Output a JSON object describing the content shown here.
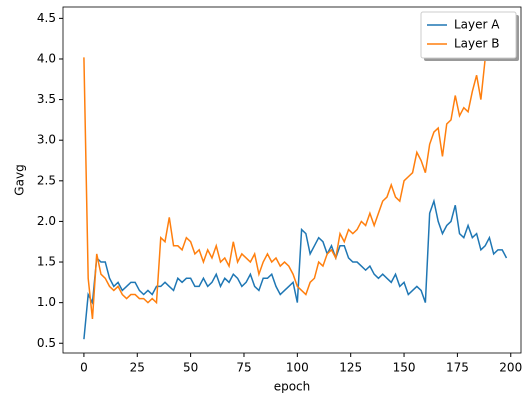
{
  "chart_data": {
    "type": "line",
    "xlabel": "epoch",
    "ylabel": "Gavg",
    "x": [
      0,
      2,
      4,
      6,
      8,
      10,
      12,
      14,
      16,
      18,
      20,
      22,
      24,
      26,
      28,
      30,
      32,
      34,
      36,
      38,
      40,
      42,
      44,
      46,
      48,
      50,
      52,
      54,
      56,
      58,
      60,
      62,
      64,
      66,
      68,
      70,
      72,
      74,
      76,
      78,
      80,
      82,
      84,
      86,
      88,
      90,
      92,
      94,
      96,
      98,
      100,
      102,
      104,
      106,
      108,
      110,
      112,
      114,
      116,
      118,
      120,
      122,
      124,
      126,
      128,
      130,
      132,
      134,
      136,
      138,
      140,
      142,
      144,
      146,
      148,
      150,
      152,
      154,
      156,
      158,
      160,
      162,
      164,
      166,
      168,
      170,
      172,
      174,
      176,
      178,
      180,
      182,
      184,
      186,
      188,
      190,
      192,
      194,
      196,
      198
    ],
    "series": [
      {
        "name": "Layer A",
        "color": "#1f77b4",
        "values": [
          0.55,
          1.1,
          1.0,
          1.55,
          1.5,
          1.5,
          1.3,
          1.2,
          1.25,
          1.15,
          1.2,
          1.25,
          1.25,
          1.15,
          1.1,
          1.15,
          1.1,
          1.2,
          1.2,
          1.25,
          1.2,
          1.15,
          1.3,
          1.25,
          1.3,
          1.3,
          1.2,
          1.2,
          1.3,
          1.2,
          1.25,
          1.35,
          1.2,
          1.3,
          1.25,
          1.35,
          1.3,
          1.2,
          1.25,
          1.35,
          1.2,
          1.15,
          1.3,
          1.3,
          1.35,
          1.2,
          1.1,
          1.15,
          1.2,
          1.25,
          1.0,
          1.9,
          1.85,
          1.6,
          1.7,
          1.8,
          1.75,
          1.6,
          1.7,
          1.55,
          1.7,
          1.7,
          1.55,
          1.5,
          1.5,
          1.45,
          1.4,
          1.45,
          1.35,
          1.3,
          1.35,
          1.3,
          1.25,
          1.35,
          1.2,
          1.25,
          1.1,
          1.15,
          1.2,
          1.15,
          1.0,
          2.1,
          2.25,
          2.0,
          1.85,
          1.95,
          2.0,
          2.2,
          1.85,
          1.8,
          1.95,
          1.8,
          1.85,
          1.65,
          1.7,
          1.8,
          1.6,
          1.65,
          1.65,
          1.55
        ]
      },
      {
        "name": "Layer B",
        "color": "#ff7f0e",
        "values": [
          4.02,
          1.3,
          0.8,
          1.6,
          1.35,
          1.3,
          1.2,
          1.15,
          1.2,
          1.1,
          1.05,
          1.1,
          1.1,
          1.05,
          1.05,
          1.0,
          1.05,
          1.0,
          1.8,
          1.75,
          2.05,
          1.7,
          1.7,
          1.65,
          1.8,
          1.75,
          1.6,
          1.65,
          1.5,
          1.65,
          1.55,
          1.7,
          1.5,
          1.55,
          1.45,
          1.75,
          1.5,
          1.6,
          1.55,
          1.5,
          1.6,
          1.35,
          1.5,
          1.6,
          1.5,
          1.55,
          1.45,
          1.5,
          1.45,
          1.35,
          1.2,
          1.15,
          1.1,
          1.25,
          1.3,
          1.5,
          1.45,
          1.6,
          1.65,
          1.55,
          1.85,
          1.75,
          1.9,
          1.85,
          1.9,
          2.0,
          1.95,
          2.1,
          1.95,
          2.1,
          2.25,
          2.3,
          2.45,
          2.3,
          2.25,
          2.5,
          2.55,
          2.6,
          2.85,
          2.75,
          2.6,
          2.95,
          3.1,
          3.15,
          2.8,
          3.2,
          3.25,
          3.55,
          3.3,
          3.4,
          3.35,
          3.6,
          3.8,
          3.5,
          4.0,
          4.2,
          4.1,
          4.0,
          4.35,
          4.45
        ]
      }
    ],
    "xlim": [
      -9.8,
      204.8
    ],
    "xticks": [
      0,
      25,
      50,
      75,
      100,
      125,
      150,
      175,
      200
    ],
    "ylim": [
      0.38,
      4.64
    ],
    "yticks": [
      0.5,
      {
        "value": 1,
        "label": "1.0"
      },
      1.5,
      {
        "value": 2,
        "label": "2.0"
      },
      2.5,
      {
        "value": 3,
        "label": "3.0"
      },
      3.5,
      {
        "value": 4,
        "label": "4.0"
      },
      4.5
    ],
    "legend": "upper right"
  }
}
